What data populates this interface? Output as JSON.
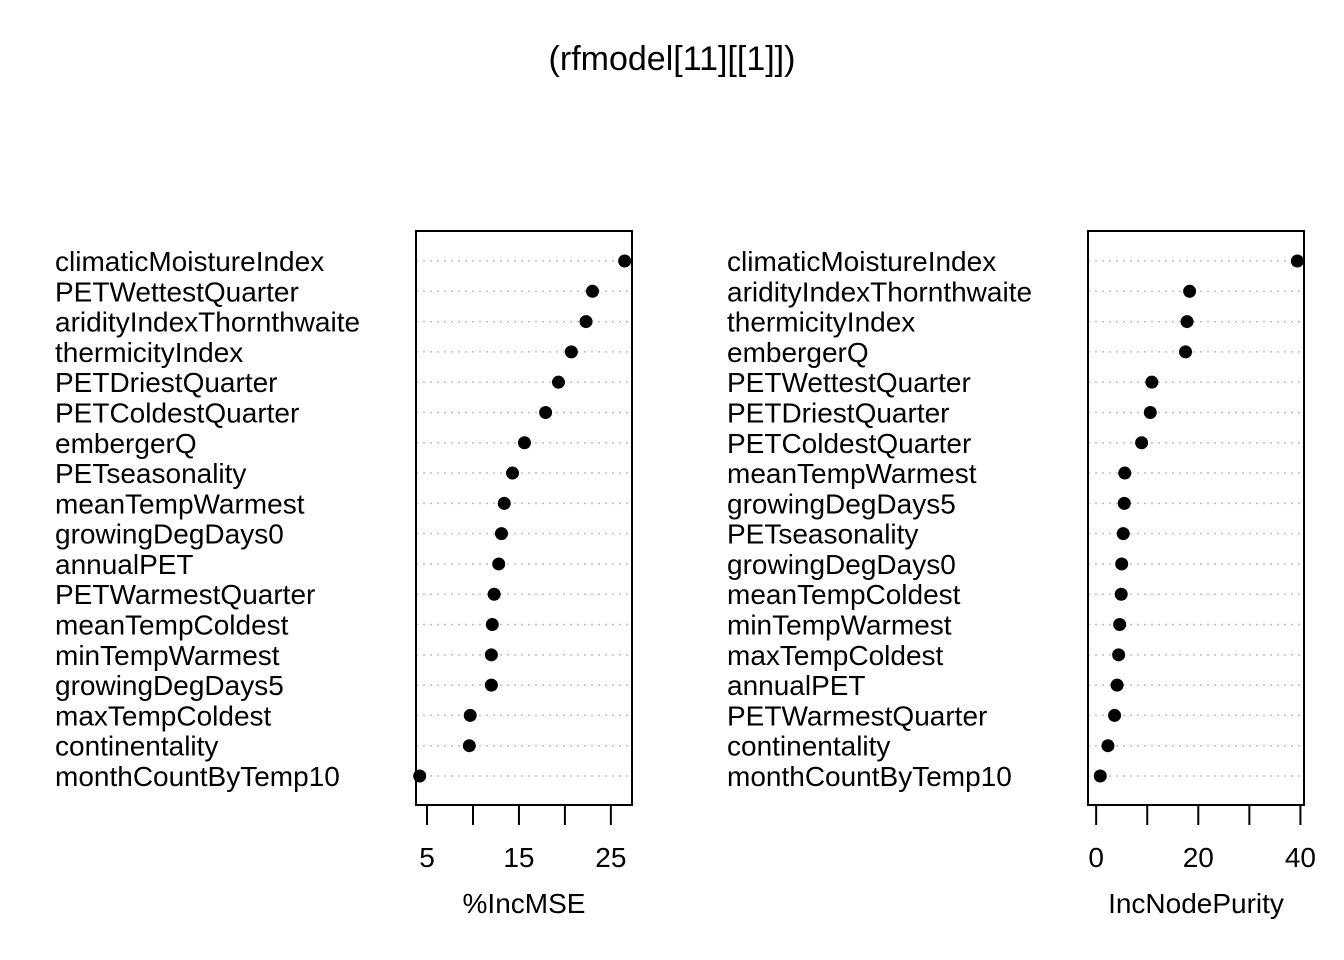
{
  "title": "(rfmodel[11][[1]])",
  "chart_data": [
    {
      "type": "scatter",
      "subtype": "dotchart",
      "xlabel": "%IncMSE",
      "ylabel": "",
      "xlim": [
        3.8,
        27.3
      ],
      "xticks": [
        5,
        10,
        15,
        20,
        25
      ],
      "xtick_labels": [
        "5",
        "",
        "15",
        "",
        "25"
      ],
      "grid": "dotted horizontal",
      "categories": [
        "climaticMoistureIndex",
        "PETWettestQuarter",
        "aridityIndexThornthwaite",
        "thermicityIndex",
        "PETDriestQuarter",
        "PETColdestQuarter",
        "embergerQ",
        "PETseasonality",
        "meanTempWarmest",
        "growingDegDays0",
        "annualPET",
        "PETWarmestQuarter",
        "meanTempColdest",
        "minTempWarmest",
        "growingDegDays5",
        "maxTempColdest",
        "continentality",
        "monthCountByTemp10"
      ],
      "values": [
        26.5,
        23.0,
        22.3,
        20.7,
        19.3,
        17.9,
        15.6,
        14.3,
        13.4,
        13.1,
        12.8,
        12.3,
        12.1,
        12.0,
        12.0,
        9.7,
        9.6,
        4.2
      ]
    },
    {
      "type": "scatter",
      "subtype": "dotchart",
      "xlabel": "IncNodePurity",
      "ylabel": "",
      "xlim": [
        -1.6,
        40.7
      ],
      "xticks": [
        0,
        10,
        20,
        30,
        40
      ],
      "xtick_labels": [
        "0",
        "",
        "20",
        "",
        "40"
      ],
      "grid": "dotted horizontal",
      "categories": [
        "climaticMoistureIndex",
        "aridityIndexThornthwaite",
        "thermicityIndex",
        "embergerQ",
        "PETWettestQuarter",
        "PETDriestQuarter",
        "PETColdestQuarter",
        "meanTempWarmest",
        "growingDegDays5",
        "PETseasonality",
        "growingDegDays0",
        "meanTempColdest",
        "minTempWarmest",
        "maxTempColdest",
        "annualPET",
        "PETWarmestQuarter",
        "continentality",
        "monthCountByTemp10"
      ],
      "values": [
        39.4,
        18.3,
        17.8,
        17.5,
        10.9,
        10.6,
        8.9,
        5.6,
        5.5,
        5.3,
        5.0,
        4.9,
        4.6,
        4.4,
        4.1,
        3.6,
        2.3,
        0.8
      ]
    }
  ]
}
